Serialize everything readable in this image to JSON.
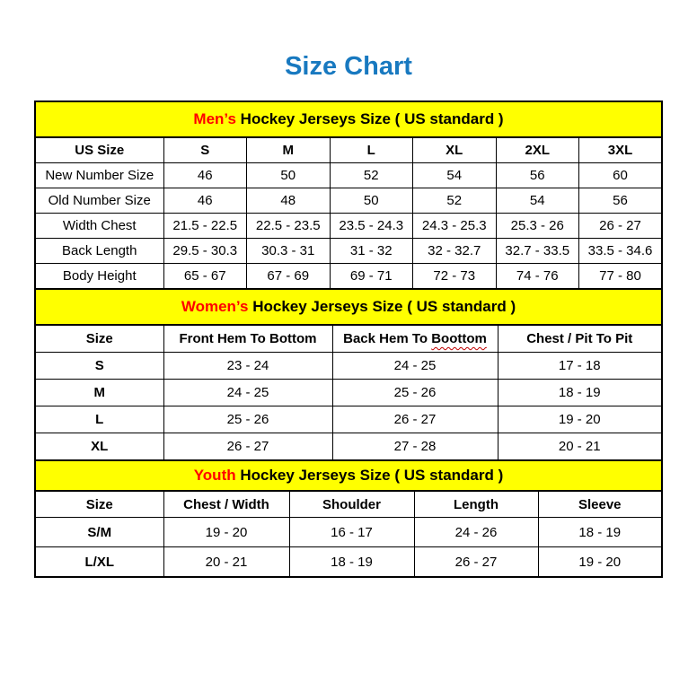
{
  "page": {
    "title": "Size Chart"
  },
  "colors": {
    "title_blue": "#1879c0",
    "band_yellow": "#ffff00",
    "accent_red": "#ff0000",
    "border_black": "#000000",
    "squiggle_red": "#c00000"
  },
  "tables": [
    {
      "id": "mens",
      "band": {
        "highlight": "Men’s",
        "rest": " Hockey Jerseys Size ( US standard )"
      },
      "headers": [
        "US Size",
        "S",
        "M",
        "L",
        "XL",
        "2XL",
        "3XL"
      ],
      "rows": [
        {
          "label": "New Number Size",
          "values": [
            "46",
            "50",
            "52",
            "54",
            "56",
            "60"
          ]
        },
        {
          "label": "Old Number Size",
          "values": [
            "46",
            "48",
            "50",
            "52",
            "54",
            "56"
          ]
        },
        {
          "label": "Width Chest",
          "values": [
            "21.5 - 22.5",
            "22.5 - 23.5",
            "23.5 - 24.3",
            "24.3 - 25.3",
            "25.3 - 26",
            "26 - 27"
          ]
        },
        {
          "label": "Back Length",
          "values": [
            "29.5 - 30.3",
            "30.3 - 31",
            "31 - 32",
            "32 - 32.7",
            "32.7 - 33.5",
            "33.5 - 34.6"
          ]
        },
        {
          "label": "Body Height",
          "values": [
            "65 - 67",
            "67 - 69",
            "69 - 71",
            "72 - 73",
            "74 - 76",
            "77 - 80"
          ]
        }
      ]
    },
    {
      "id": "womens",
      "band": {
        "highlight": "Women’s",
        "rest": " Hockey Jerseys Size ( US standard )"
      },
      "headers": [
        "Size",
        "Front Hem To Bottom",
        "Back Hem To Boottom",
        "Chest / Pit To Pit"
      ],
      "squiggle": {
        "column": 2,
        "word": "Boottom"
      },
      "rows": [
        {
          "label": "S",
          "values": [
            "23 - 24",
            "24 - 25",
            "17 - 18"
          ]
        },
        {
          "label": "M",
          "values": [
            "24 - 25",
            "25 - 26",
            "18 - 19"
          ]
        },
        {
          "label": "L",
          "values": [
            "25 - 26",
            "26 - 27",
            "19 - 20"
          ]
        },
        {
          "label": "XL",
          "values": [
            "26 - 27",
            "27 - 28",
            "20 - 21"
          ]
        }
      ]
    },
    {
      "id": "youth",
      "band": {
        "highlight": "Youth",
        "rest": " Hockey Jerseys Size ( US standard )"
      },
      "headers": [
        "Size",
        "Chest / Width",
        "Shoulder",
        "Length",
        "Sleeve"
      ],
      "rows": [
        {
          "label": "S/M",
          "values": [
            "19 - 20",
            "16 - 17",
            "24 - 26",
            "18 - 19"
          ]
        },
        {
          "label": "L/XL",
          "values": [
            "20 - 21",
            "18 - 19",
            "26 - 27",
            "19 - 20"
          ]
        }
      ]
    }
  ]
}
